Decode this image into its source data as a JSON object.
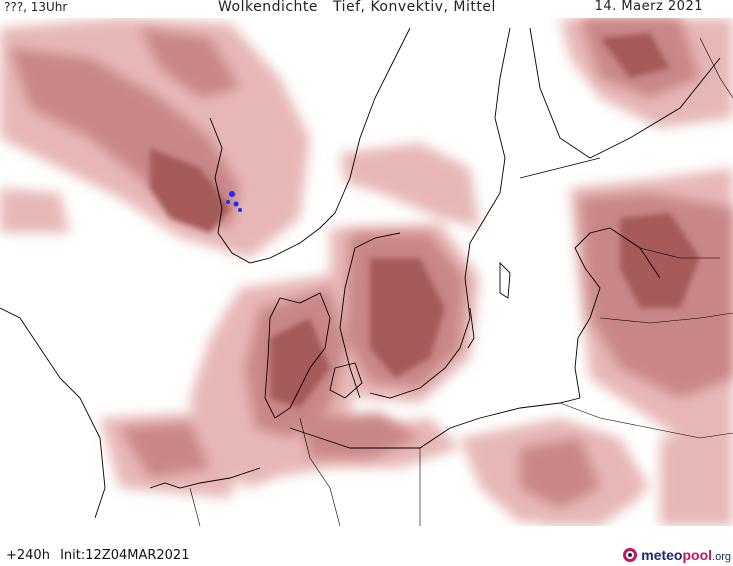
{
  "header": {
    "left": "???, 13Uhr",
    "title_parts": [
      "Wolkendichte",
      "Tief, Konvektiv, Mittel"
    ],
    "date": "14. Maerz 2021"
  },
  "footer": {
    "lead_time": "+240h",
    "init": "Init:12Z04MAR2021"
  },
  "logo": {
    "brand_meteo": "meteo",
    "brand_pool": "pool",
    "brand_tld": ".org"
  },
  "colors": {
    "cloud_light": "#e7b7b7",
    "cloud_mid": "#c98686",
    "cloud_dark": "#a65a5a",
    "coast": "#000000",
    "precip_marker": "#1a2cff"
  }
}
